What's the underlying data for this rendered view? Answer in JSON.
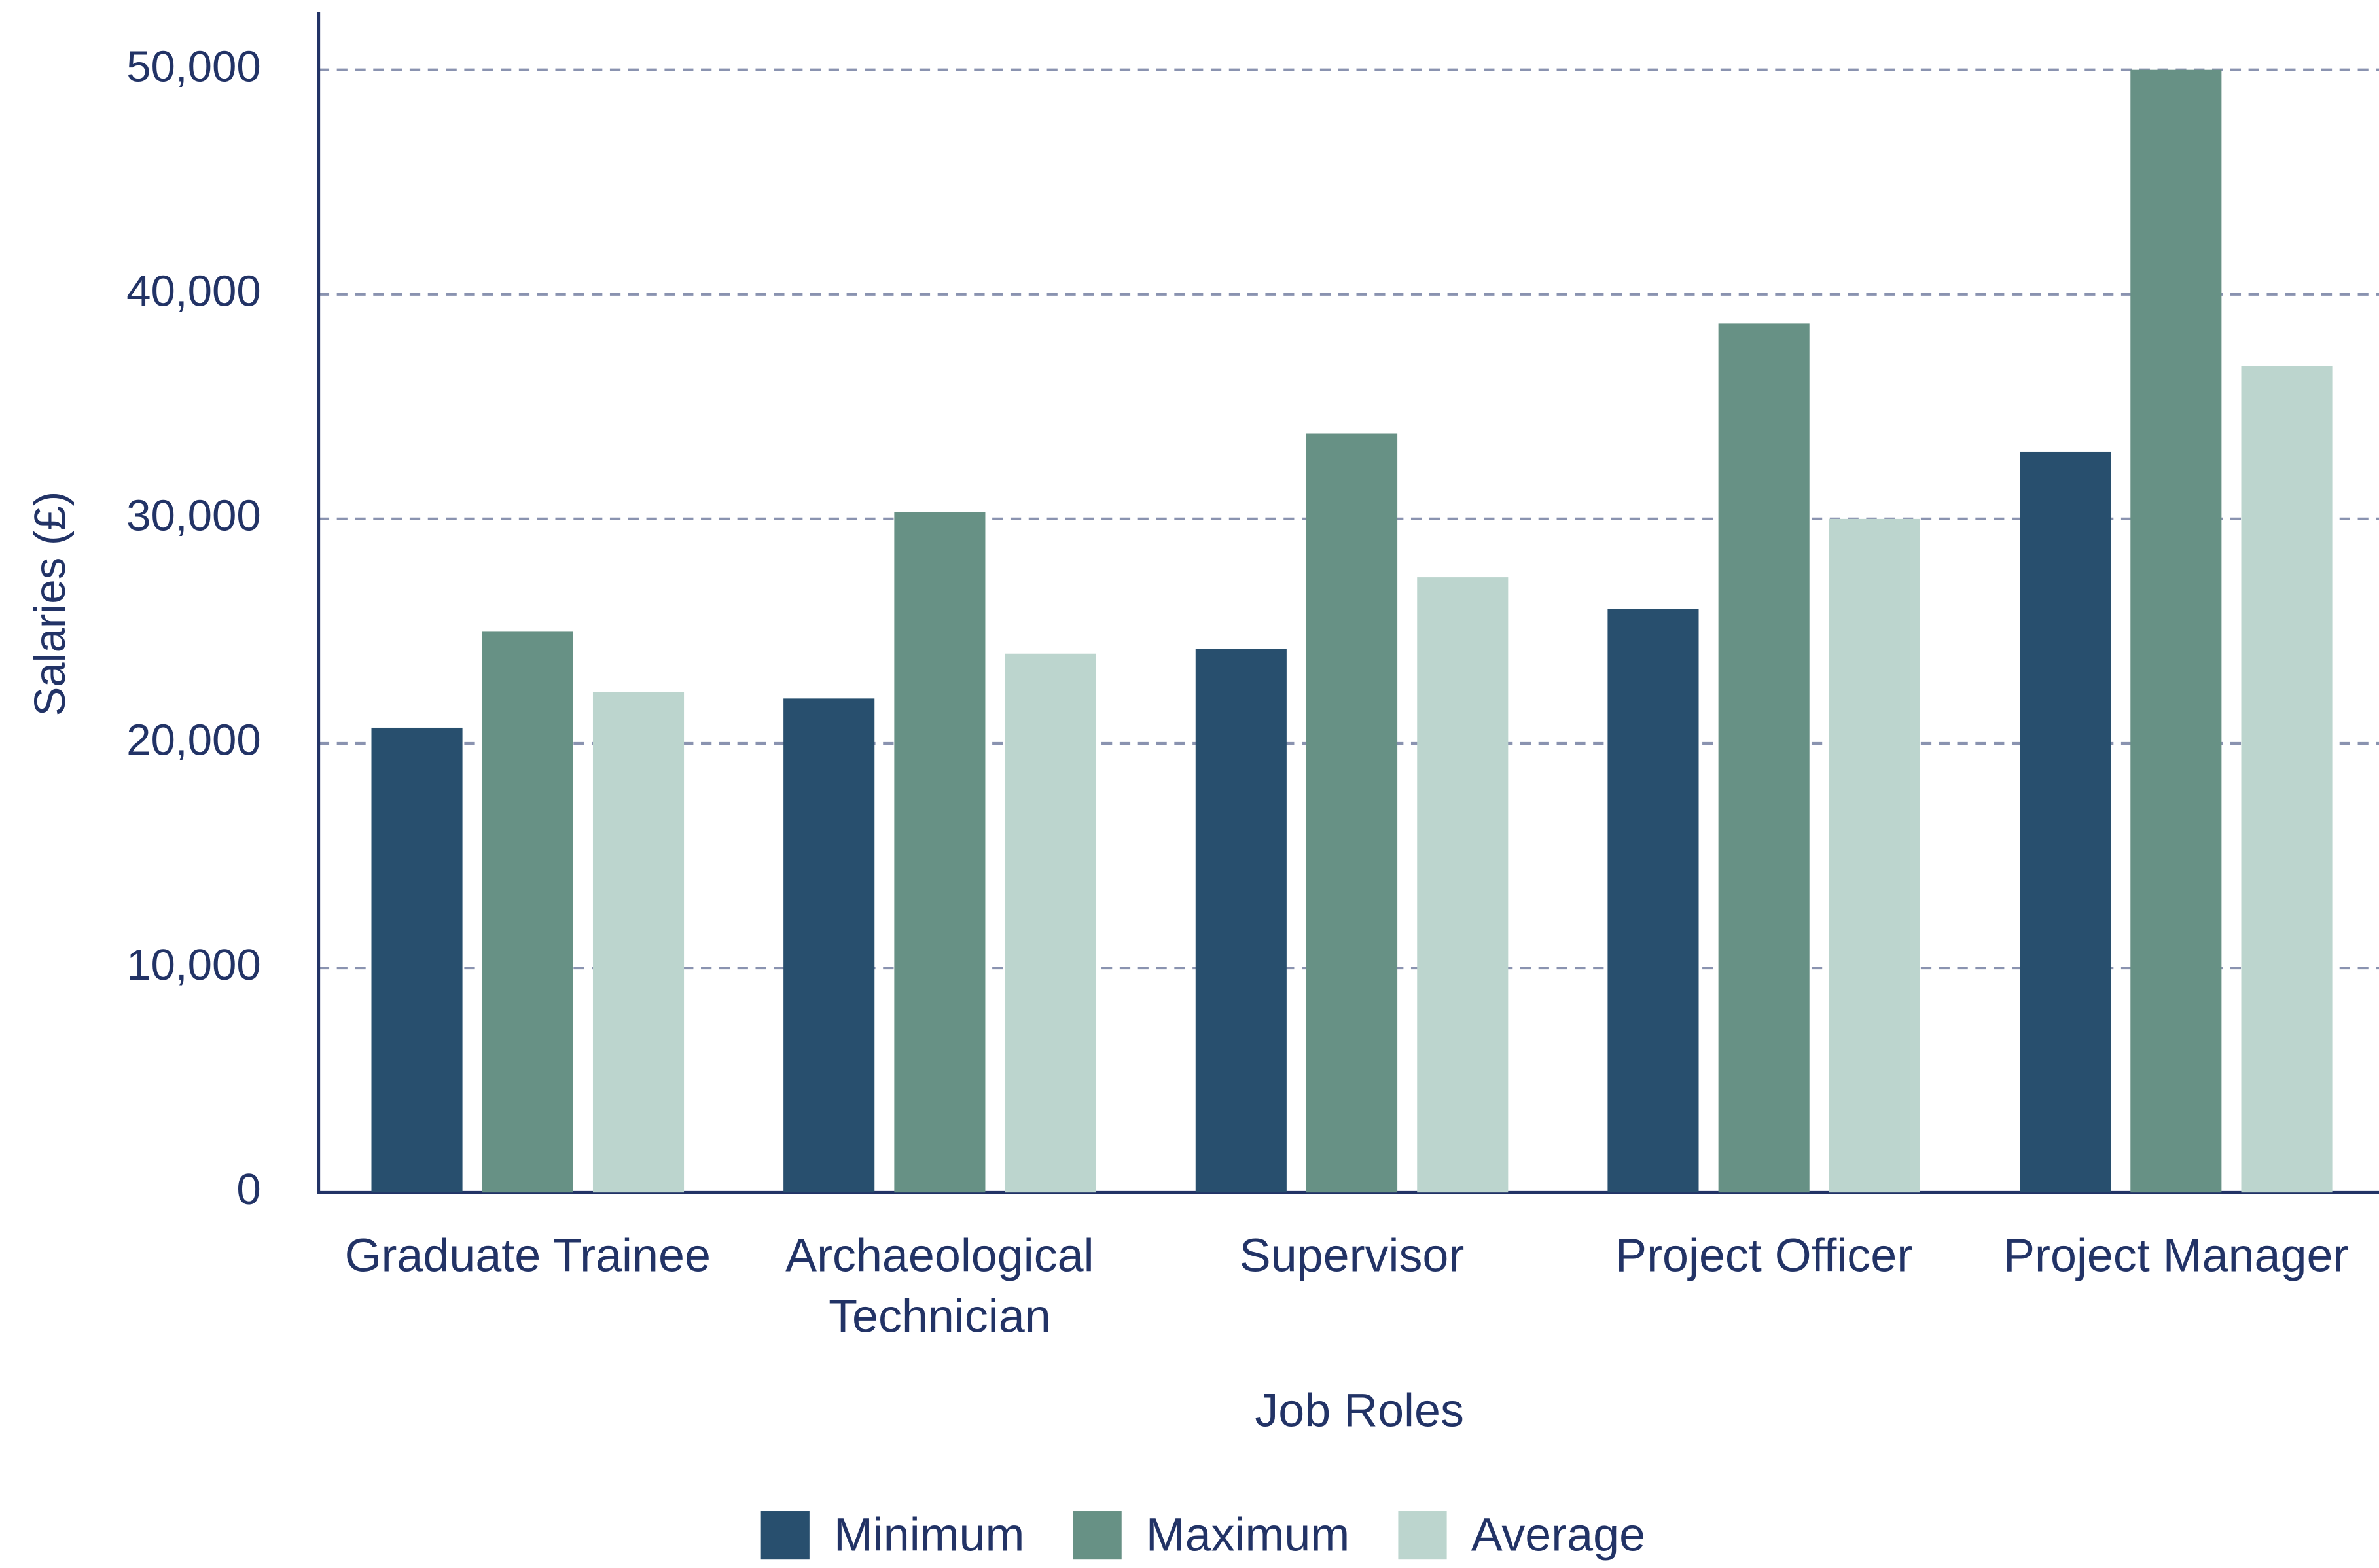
{
  "chart_data": {
    "type": "bar",
    "x_label": "Job Roles",
    "y_label": "Salaries (£)",
    "categories": [
      "Graduate Trainee",
      "Archaeological Technician",
      "Supervisor",
      "Project Officer",
      "Project Manager"
    ],
    "series": [
      {
        "name": "Minimum",
        "color": "#284f6e",
        "values": [
          20700,
          22000,
          24200,
          26000,
          33000
        ]
      },
      {
        "name": "Maximum",
        "color": "#679185",
        "values": [
          25000,
          30300,
          33800,
          38700,
          50000
        ]
      },
      {
        "name": "Average",
        "color": "#bcd5ce",
        "values": [
          22300,
          24000,
          27400,
          30000,
          36800
        ]
      }
    ],
    "ylim": [
      0,
      50000
    ],
    "yticks": [
      0,
      {
        "value": 10000,
        "label": "10,000"
      },
      {
        "value": 20000,
        "label": "20,000"
      },
      {
        "value": 30000,
        "label": "30,000"
      },
      {
        "value": 40000,
        "label": "40,000"
      },
      {
        "value": 50000,
        "label": "50,000"
      }
    ],
    "grid": true,
    "legend": "bottom"
  }
}
